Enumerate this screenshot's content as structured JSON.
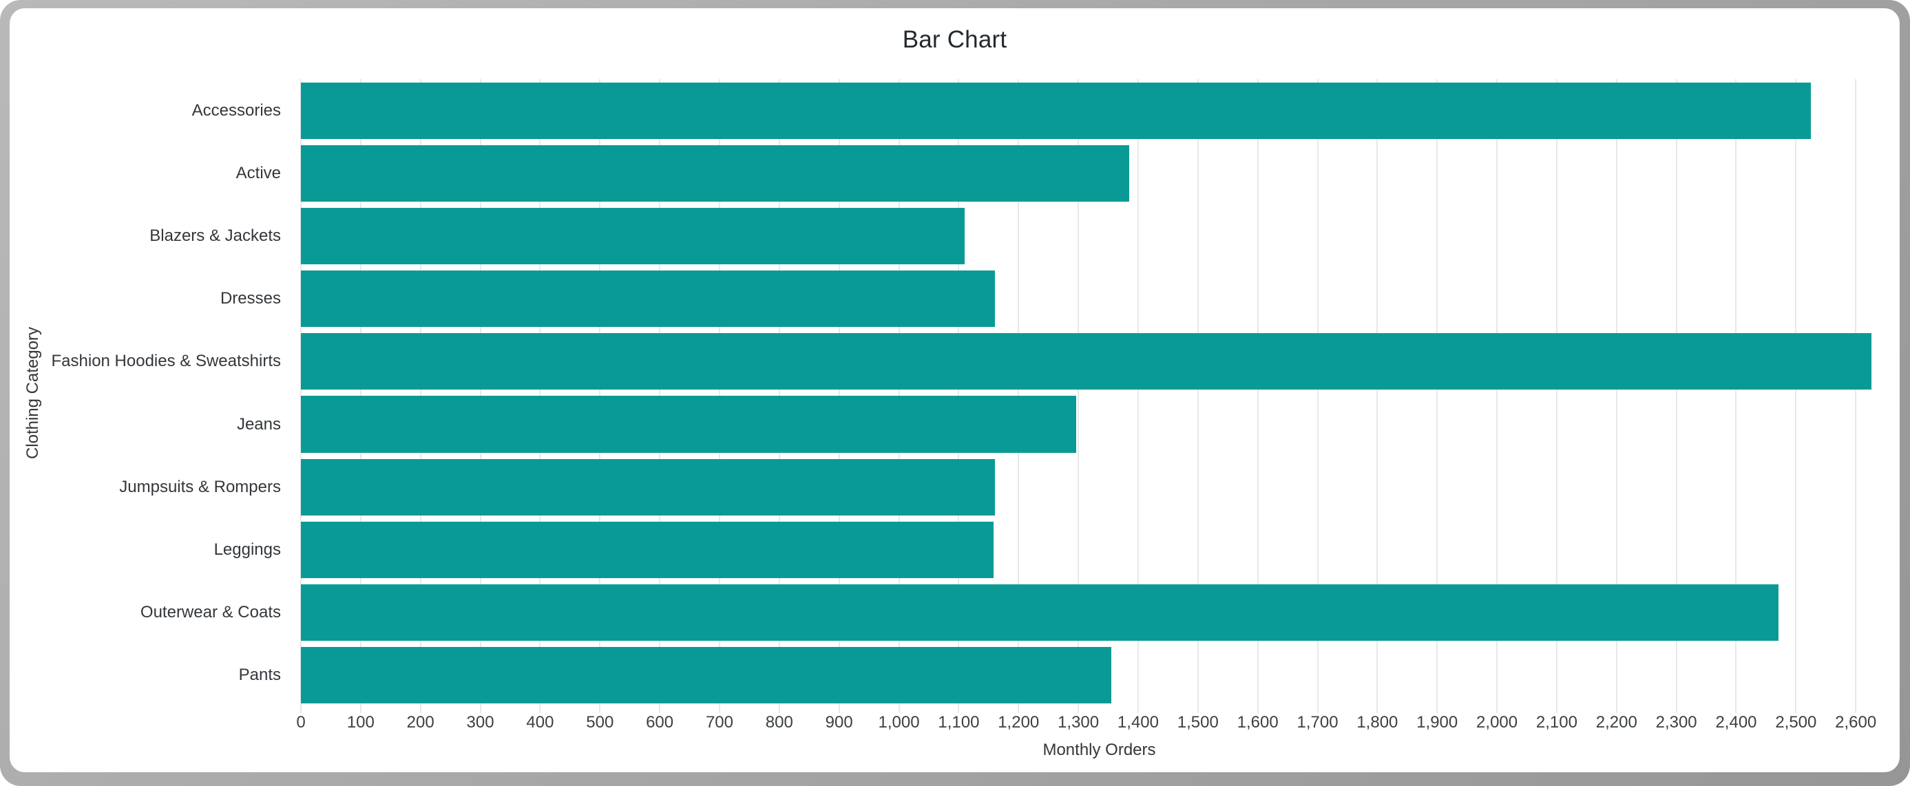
{
  "window": {
    "frame_color": "#a8a8a8",
    "card_background": "#ffffff"
  },
  "chart_data": {
    "type": "bar",
    "orientation": "horizontal",
    "title": "Bar Chart",
    "xlabel": "Monthly Orders",
    "ylabel": "Clothing Category",
    "categories": [
      "Accessories",
      "Active",
      "Blazers & Jackets",
      "Dresses",
      "Fashion Hoodies & Sweatshirts",
      "Jeans",
      "Jumpsuits & Rompers",
      "Leggings",
      "Outerwear & Coats",
      "Pants"
    ],
    "values": [
      2525,
      1385,
      1110,
      1160,
      2626,
      1296,
      1161,
      1158,
      2471,
      1355
    ],
    "series_color": "#0a9a96",
    "gridline_color": "#e8e8e8",
    "text_color": "#3b4043",
    "xlim": [
      0,
      2670
    ],
    "tick_step": 100,
    "tick_labels": [
      "0",
      "100",
      "200",
      "300",
      "400",
      "500",
      "600",
      "700",
      "800",
      "900",
      "1,000",
      "1,100",
      "1,200",
      "1,300",
      "1,400",
      "1,500",
      "1,600",
      "1,700",
      "1,800",
      "1,900",
      "2,000",
      "2,100",
      "2,200",
      "2,300",
      "2,400",
      "2,500",
      "2,600"
    ],
    "grid": true,
    "legend": "none"
  }
}
